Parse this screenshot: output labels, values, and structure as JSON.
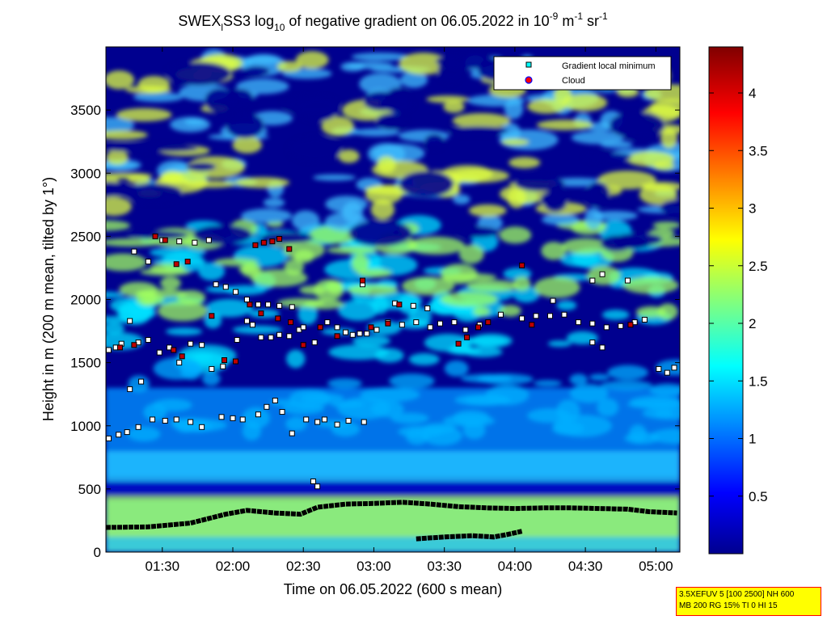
{
  "chart_data": {
    "type": "heatmap",
    "title": {
      "part1": "SWEX",
      "sub1": "l",
      "part2": "SS3 log",
      "sub2": "10",
      "part3": " of negative gradient on 06.05.2022 in 10",
      "sup1": "-9",
      "part4": " m",
      "sup2": "-1",
      "part5": " sr",
      "sup3": "-1"
    },
    "xlabel": "Time on 06.05.2022 (600 s mean)",
    "ylabel": "Height in m (200 m mean, tilted by 1°)",
    "x_ticks": [
      "01:30",
      "02:00",
      "02:30",
      "03:00",
      "03:30",
      "04:00",
      "04:30",
      "05:00"
    ],
    "x_tick_hours": [
      1.5,
      2.0,
      2.5,
      3.0,
      3.5,
      4.0,
      4.5,
      5.0
    ],
    "xlim_hours": [
      1.1,
      5.17
    ],
    "y_ticks": [
      0,
      500,
      1000,
      1500,
      2000,
      2500,
      3000,
      3500
    ],
    "ylim": [
      0,
      4000
    ],
    "colorbar": {
      "ticks": [
        "0.5",
        "1",
        "1.5",
        "2",
        "2.5",
        "3",
        "3.5",
        "4"
      ],
      "tick_values": [
        0.5,
        1.0,
        1.5,
        2.0,
        2.5,
        3.0,
        3.5,
        4.0
      ],
      "range": [
        0.0,
        4.4
      ]
    },
    "legend": {
      "position": "top-right",
      "entries": [
        "Gradient local minimum",
        "Cloud"
      ]
    },
    "series": [
      {
        "name": "Gradient local minimum",
        "points": [
          [
            1.12,
            1600
          ],
          [
            1.17,
            1620
          ],
          [
            1.21,
            1650
          ],
          [
            1.27,
            1830
          ],
          [
            1.33,
            1660
          ],
          [
            1.4,
            1680
          ],
          [
            1.48,
            1580
          ],
          [
            1.55,
            1620
          ],
          [
            1.62,
            1500
          ],
          [
            1.7,
            1650
          ],
          [
            1.78,
            1640
          ],
          [
            1.85,
            1450
          ],
          [
            1.93,
            1470
          ],
          [
            2.03,
            1680
          ],
          [
            2.1,
            1830
          ],
          [
            2.14,
            1800
          ],
          [
            2.2,
            1700
          ],
          [
            2.27,
            1700
          ],
          [
            2.33,
            1720
          ],
          [
            2.4,
            1710
          ],
          [
            2.47,
            1760
          ],
          [
            2.5,
            1780
          ],
          [
            2.58,
            1660
          ],
          [
            2.67,
            1820
          ],
          [
            2.74,
            1780
          ],
          [
            2.8,
            1740
          ],
          [
            2.85,
            1720
          ],
          [
            2.9,
            1730
          ],
          [
            2.95,
            1730
          ],
          [
            3.02,
            1760
          ],
          [
            3.1,
            1820
          ],
          [
            3.2,
            1800
          ],
          [
            3.3,
            1820
          ],
          [
            3.4,
            1780
          ],
          [
            3.47,
            1810
          ],
          [
            3.57,
            1820
          ],
          [
            3.65,
            1760
          ],
          [
            3.75,
            1800
          ],
          [
            3.9,
            1880
          ],
          [
            4.05,
            1850
          ],
          [
            4.15,
            1870
          ],
          [
            4.25,
            1870
          ],
          [
            4.35,
            1880
          ],
          [
            4.45,
            1820
          ],
          [
            4.55,
            1810
          ],
          [
            4.65,
            1780
          ],
          [
            4.75,
            1790
          ],
          [
            4.85,
            1820
          ],
          [
            4.92,
            1840
          ],
          [
            1.12,
            900
          ],
          [
            1.19,
            930
          ],
          [
            1.25,
            950
          ],
          [
            1.33,
            990
          ],
          [
            1.43,
            1050
          ],
          [
            1.52,
            1040
          ],
          [
            1.6,
            1050
          ],
          [
            1.7,
            1030
          ],
          [
            1.78,
            990
          ],
          [
            1.92,
            1070
          ],
          [
            2.0,
            1060
          ],
          [
            2.07,
            1050
          ],
          [
            2.18,
            1090
          ],
          [
            2.24,
            1150
          ],
          [
            2.3,
            1200
          ],
          [
            2.35,
            1110
          ],
          [
            2.42,
            940
          ],
          [
            2.52,
            1050
          ],
          [
            2.6,
            1030
          ],
          [
            2.65,
            1050
          ],
          [
            2.74,
            1010
          ],
          [
            2.82,
            1040
          ],
          [
            2.93,
            1030
          ],
          [
            1.27,
            1290
          ],
          [
            1.35,
            1350
          ],
          [
            2.57,
            560
          ],
          [
            2.6,
            520
          ],
          [
            4.55,
            1660
          ],
          [
            4.62,
            1620
          ],
          [
            5.02,
            1450
          ],
          [
            5.08,
            1420
          ],
          [
            5.13,
            1460
          ],
          [
            1.5,
            2470
          ],
          [
            1.62,
            2460
          ],
          [
            1.73,
            2450
          ],
          [
            1.83,
            2470
          ],
          [
            1.88,
            2120
          ],
          [
            1.95,
            2100
          ],
          [
            2.02,
            2060
          ],
          [
            2.1,
            2000
          ],
          [
            2.18,
            1960
          ],
          [
            2.25,
            1960
          ],
          [
            2.33,
            1950
          ],
          [
            2.42,
            1940
          ],
          [
            2.92,
            2120
          ],
          [
            3.15,
            1970
          ],
          [
            3.28,
            1950
          ],
          [
            3.38,
            1930
          ],
          [
            4.27,
            1990
          ],
          [
            4.55,
            2150
          ],
          [
            4.62,
            2200
          ],
          [
            4.8,
            2150
          ],
          [
            1.3,
            2380
          ],
          [
            1.4,
            2300
          ]
        ]
      },
      {
        "name": "Cloud",
        "points": [
          [
            1.2,
            1620
          ],
          [
            1.3,
            1640
          ],
          [
            1.58,
            1600
          ],
          [
            1.64,
            1550
          ],
          [
            1.85,
            1870
          ],
          [
            1.94,
            1520
          ],
          [
            2.02,
            1510
          ],
          [
            2.12,
            1960
          ],
          [
            2.2,
            1890
          ],
          [
            2.32,
            1850
          ],
          [
            2.41,
            1820
          ],
          [
            2.5,
            1640
          ],
          [
            2.62,
            1780
          ],
          [
            2.74,
            1710
          ],
          [
            2.98,
            1780
          ],
          [
            3.1,
            1810
          ],
          [
            3.6,
            1650
          ],
          [
            3.66,
            1700
          ],
          [
            3.74,
            1780
          ],
          [
            3.81,
            1820
          ],
          [
            4.05,
            2270
          ],
          [
            4.12,
            1800
          ],
          [
            2.16,
            2430
          ],
          [
            2.22,
            2450
          ],
          [
            2.28,
            2460
          ],
          [
            2.33,
            2480
          ],
          [
            2.4,
            2400
          ],
          [
            1.45,
            2500
          ],
          [
            1.52,
            2470
          ],
          [
            1.6,
            2280
          ],
          [
            1.68,
            2300
          ],
          [
            2.92,
            2150
          ],
          [
            3.18,
            1960
          ],
          [
            4.82,
            1800
          ]
        ]
      }
    ],
    "line_points_hours_m": {
      "lower_layer": [
        [
          1.1,
          195
        ],
        [
          1.4,
          200
        ],
        [
          1.7,
          230
        ],
        [
          1.95,
          300
        ],
        [
          2.1,
          330
        ],
        [
          2.3,
          310
        ],
        [
          2.48,
          300
        ],
        [
          2.6,
          355
        ],
        [
          2.8,
          380
        ],
        [
          3.0,
          385
        ],
        [
          3.2,
          395
        ],
        [
          3.4,
          380
        ],
        [
          3.6,
          360
        ],
        [
          3.8,
          350
        ],
        [
          4.0,
          345
        ],
        [
          4.2,
          350
        ],
        [
          4.4,
          350
        ],
        [
          4.6,
          345
        ],
        [
          4.8,
          340
        ],
        [
          4.95,
          320
        ],
        [
          5.15,
          310
        ]
      ],
      "bottom_layer": [
        [
          3.3,
          105
        ],
        [
          3.5,
          120
        ],
        [
          3.7,
          130
        ],
        [
          3.85,
          120
        ],
        [
          3.95,
          140
        ],
        [
          4.05,
          165
        ]
      ]
    }
  },
  "info_box": {
    "line1": "3.5XEFUV 5 [100 2500] NH 600",
    "line2": "MB 200 RG 15% TI 0 HI 15"
  },
  "colors": {
    "low": "#00008f",
    "mid": "#00ffff",
    "high": "#ffff00",
    "max": "#800000",
    "legend_min_marker": "#00ffff",
    "legend_cloud_marker": "#ff0000"
  }
}
